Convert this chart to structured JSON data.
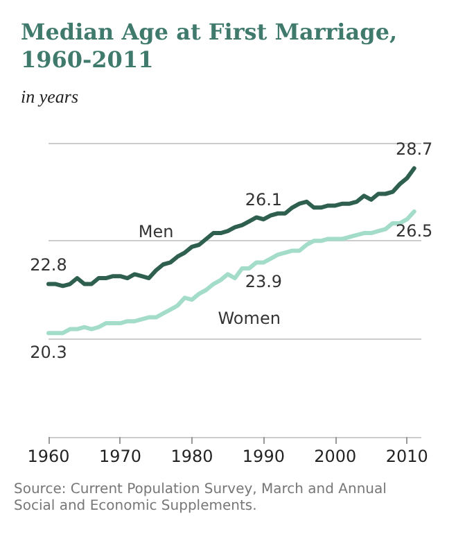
{
  "chart_data": {
    "type": "line",
    "title": "Median Age at First Marriage, 1960-2011",
    "subtitle": "in years",
    "annotations": [
      "Source: Current Population Survey, March and Annual Social and Economic Supplements."
    ],
    "x": [
      1960,
      1961,
      1962,
      1963,
      1964,
      1965,
      1966,
      1967,
      1968,
      1969,
      1970,
      1971,
      1972,
      1973,
      1974,
      1975,
      1976,
      1977,
      1978,
      1979,
      1980,
      1981,
      1982,
      1983,
      1984,
      1985,
      1986,
      1987,
      1988,
      1989,
      1990,
      1991,
      1992,
      1993,
      1994,
      1995,
      1996,
      1997,
      1998,
      1999,
      2000,
      2001,
      2002,
      2003,
      2004,
      2005,
      2006,
      2007,
      2008,
      2009,
      2010,
      2011
    ],
    "series": [
      {
        "name": "Men",
        "color": "#2f604f",
        "values": [
          22.8,
          22.8,
          22.7,
          22.8,
          23.1,
          22.8,
          22.8,
          23.1,
          23.1,
          23.2,
          23.2,
          23.1,
          23.3,
          23.2,
          23.1,
          23.5,
          23.8,
          23.9,
          24.2,
          24.4,
          24.7,
          24.8,
          25.1,
          25.4,
          25.4,
          25.5,
          25.7,
          25.8,
          26.0,
          26.2,
          26.1,
          26.3,
          26.4,
          26.4,
          26.7,
          26.9,
          27.0,
          26.7,
          26.7,
          26.8,
          26.8,
          26.9,
          26.9,
          27.0,
          27.3,
          27.1,
          27.4,
          27.4,
          27.5,
          27.9,
          28.2,
          28.7
        ],
        "value_labels": [
          "22.8",
          null,
          null,
          null,
          null,
          null,
          null,
          null,
          null,
          null,
          null,
          null,
          null,
          null,
          null,
          null,
          null,
          null,
          null,
          null,
          null,
          null,
          null,
          null,
          null,
          null,
          null,
          null,
          null,
          null,
          "26.1",
          null,
          null,
          null,
          null,
          null,
          null,
          null,
          null,
          null,
          null,
          null,
          null,
          null,
          null,
          null,
          null,
          null,
          null,
          null,
          null,
          "28.7"
        ]
      },
      {
        "name": "Women",
        "color": "#a3dcc8",
        "values": [
          20.3,
          20.3,
          20.3,
          20.5,
          20.5,
          20.6,
          20.5,
          20.6,
          20.8,
          20.8,
          20.8,
          20.9,
          20.9,
          21.0,
          21.1,
          21.1,
          21.3,
          21.5,
          21.7,
          22.1,
          22.0,
          22.3,
          22.5,
          22.8,
          23.0,
          23.3,
          23.1,
          23.6,
          23.6,
          23.9,
          23.9,
          24.1,
          24.3,
          24.4,
          24.5,
          24.5,
          24.8,
          25.0,
          25.0,
          25.1,
          25.1,
          25.1,
          25.2,
          25.3,
          25.4,
          25.4,
          25.5,
          25.6,
          25.9,
          25.9,
          26.1,
          26.5
        ],
        "value_labels": [
          "20.3",
          null,
          null,
          null,
          null,
          null,
          null,
          null,
          null,
          null,
          null,
          null,
          null,
          null,
          null,
          null,
          null,
          null,
          null,
          null,
          null,
          null,
          null,
          null,
          null,
          null,
          null,
          null,
          null,
          null,
          "23.9",
          null,
          null,
          null,
          null,
          null,
          null,
          null,
          null,
          null,
          null,
          null,
          null,
          null,
          null,
          null,
          null,
          null,
          null,
          null,
          null,
          "26.5"
        ]
      }
    ],
    "xlim": [
      1960,
      2012
    ],
    "xticks": [
      1960,
      1970,
      1980,
      1990,
      2000,
      2010
    ],
    "ylim": [
      15,
      30
    ],
    "yticks": [
      {
        "value": 15,
        "label": null
      },
      {
        "value": 20,
        "label": null
      },
      {
        "value": 25,
        "label": null
      },
      {
        "value": 30,
        "label": null
      }
    ],
    "grid": "y",
    "marker": "none",
    "line_style": "solid",
    "tick_labels": "x"
  }
}
